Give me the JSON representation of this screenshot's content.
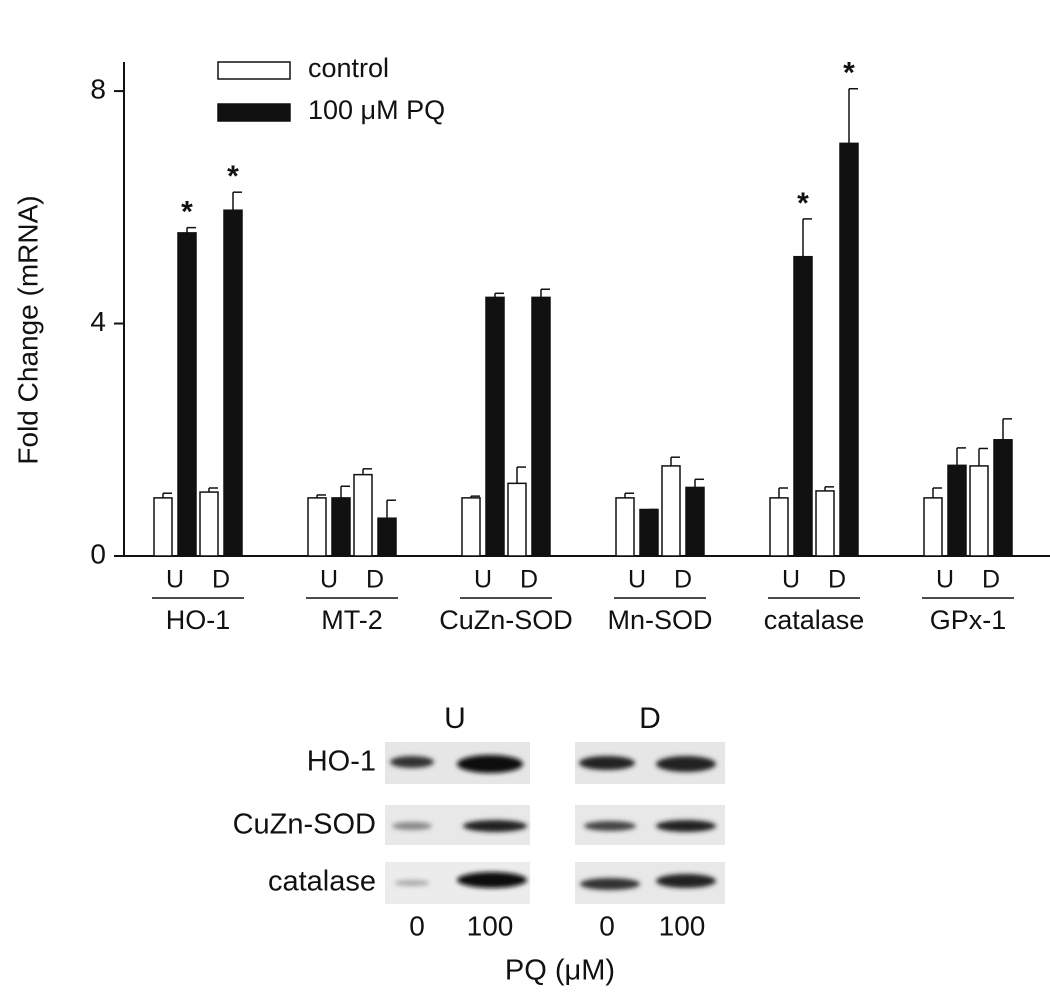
{
  "chart_data": {
    "type": "bar",
    "ylabel": "Fold Change (mRNA)",
    "groups": [
      "HO-1",
      "MT-2",
      "CuZn-SOD",
      "Mn-SOD",
      "catalase",
      "GPx-1"
    ],
    "categories": [
      "U",
      "D",
      "U",
      "D",
      "U",
      "D",
      "U",
      "D",
      "U",
      "D",
      "U",
      "D"
    ],
    "series": [
      {
        "name": "control",
        "color": "#ffffff",
        "values": [
          1.0,
          1.1,
          1.0,
          1.4,
          1.0,
          1.25,
          1.0,
          1.55,
          1.0,
          1.12,
          1.0,
          1.55
        ],
        "errors": [
          0.08,
          0.07,
          0.05,
          0.1,
          0.03,
          0.28,
          0.08,
          0.15,
          0.17,
          0.07,
          0.17,
          0.3
        ],
        "markers": [
          null,
          null,
          null,
          null,
          null,
          null,
          null,
          null,
          null,
          null,
          null,
          null
        ]
      },
      {
        "name": "100 μM PQ",
        "color": "#111111",
        "values": [
          5.56,
          5.95,
          1.0,
          0.65,
          4.45,
          4.45,
          0.8,
          1.18,
          5.15,
          7.1,
          1.56,
          2.0
        ],
        "errors": [
          0.09,
          0.31,
          0.2,
          0.31,
          0.07,
          0.14,
          0,
          0.14,
          0.65,
          0.94,
          0.3,
          0.36
        ],
        "markers": [
          "*",
          "*",
          null,
          null,
          null,
          null,
          null,
          null,
          "*",
          "*",
          null,
          null
        ]
      }
    ],
    "ylim": [
      0,
      8.5
    ],
    "yticks": [
      0,
      4,
      8
    ],
    "legend": "top-left"
  },
  "blot": {
    "columns": [
      "U",
      "D"
    ],
    "rows": [
      "HO-1",
      "CuZn-SOD",
      "catalase"
    ],
    "lanes": [
      "0",
      "100",
      "0",
      "100"
    ],
    "xlabel": "PQ (μM)"
  }
}
